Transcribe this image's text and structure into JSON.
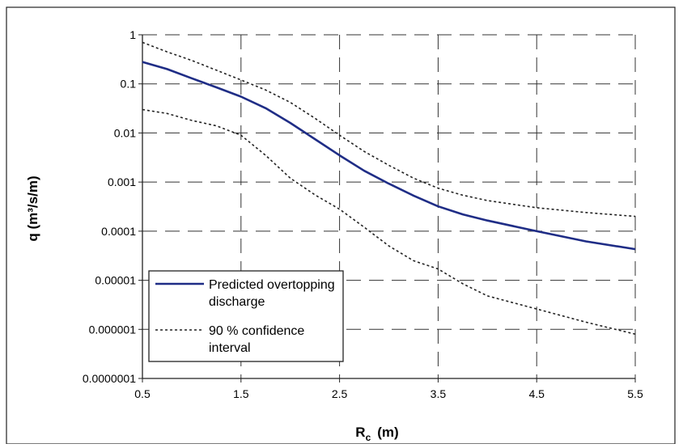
{
  "chart_data": {
    "type": "line",
    "xlabel": "R",
    "xlabel_sub": "c",
    "xlabel_unit": "(m)",
    "ylabel": "q (m³/s/m)",
    "x_ticks": [
      "0.5",
      "1.5",
      "2.5",
      "3.5",
      "4.5",
      "5.5"
    ],
    "x_tick_values": [
      0.5,
      1.5,
      2.5,
      3.5,
      4.5,
      5.5
    ],
    "y_ticks": [
      "1",
      "0.1",
      "0.01",
      "0.001",
      "0.0001",
      "0.00001",
      "0.000001",
      "0.0000001"
    ],
    "y_tick_values": [
      1,
      0.1,
      0.01,
      0.001,
      0.0001,
      1e-05,
      1e-06,
      1e-07
    ],
    "xlim": [
      0.5,
      5.5
    ],
    "ylim": [
      1e-07,
      1
    ],
    "y_scale": "log",
    "grid": "dashed",
    "legend_position": "lower-left",
    "colors": {
      "predicted": "#1f2d86",
      "confidence": "#222222"
    },
    "series": [
      {
        "name": "Predicted overtopping discharge",
        "style": "solid",
        "x": [
          0.5,
          0.75,
          1.0,
          1.25,
          1.5,
          1.75,
          2.0,
          2.25,
          2.5,
          2.75,
          3.0,
          3.25,
          3.5,
          3.75,
          4.0,
          4.5,
          5.0,
          5.5
        ],
        "y": [
          0.28,
          0.2,
          0.13,
          0.085,
          0.055,
          0.032,
          0.016,
          0.0075,
          0.0035,
          0.0017,
          0.00093,
          0.00053,
          0.00032,
          0.00022,
          0.000165,
          0.0001,
          6.2e-05,
          4.3e-05
        ]
      },
      {
        "name": "90 % confidence interval",
        "label_lines": [
          "90 % confidence",
          "interval"
        ],
        "style": "dotted",
        "x": [
          0.5,
          0.75,
          1.0,
          1.25,
          1.5,
          1.75,
          2.0,
          2.25,
          2.5,
          2.75,
          3.0,
          3.25,
          3.5,
          3.75,
          4.0,
          4.5,
          5.0,
          5.5
        ],
        "y": [
          0.7,
          0.45,
          0.3,
          0.19,
          0.12,
          0.075,
          0.042,
          0.02,
          0.009,
          0.0042,
          0.0022,
          0.0012,
          0.00075,
          0.00054,
          0.00042,
          0.0003,
          0.00024,
          0.0002
        ]
      },
      {
        "name": "90 % confidence interval",
        "style": "dotted",
        "x": [
          0.5,
          0.75,
          1.0,
          1.25,
          1.5,
          1.75,
          2.0,
          2.25,
          2.5,
          2.75,
          3.0,
          3.25,
          3.5,
          3.75,
          4.0,
          4.5,
          5.0,
          5.5
        ],
        "y": [
          0.03,
          0.025,
          0.018,
          0.014,
          0.009,
          0.0035,
          0.0012,
          0.00055,
          0.00028,
          0.00012,
          5e-05,
          2.5e-05,
          1.7e-05,
          8.5e-06,
          4.8e-06,
          2.6e-06,
          1.4e-06,
          8e-07
        ]
      }
    ],
    "legend": [
      {
        "series": 0,
        "lines": [
          "Predicted overtopping",
          "discharge"
        ],
        "style": "solid"
      },
      {
        "series": 1,
        "lines": [
          "90 % confidence",
          "interval"
        ],
        "style": "dotted"
      }
    ]
  }
}
